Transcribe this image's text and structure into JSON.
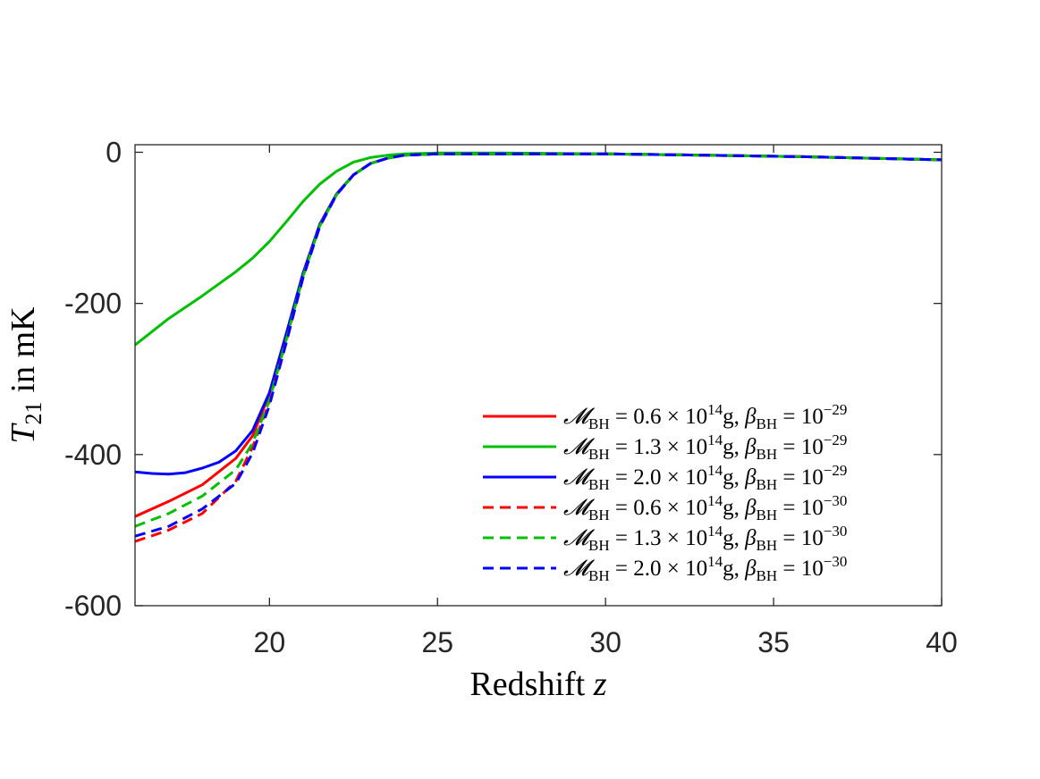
{
  "chart_data": {
    "type": "line",
    "title": "",
    "xlabel": {
      "text": "Redshift",
      "var": "z"
    },
    "ylabel": {
      "var": "T",
      "sub": "21",
      "rest": "in mK"
    },
    "xlim": [
      16,
      40
    ],
    "ylim": [
      -600,
      10
    ],
    "xticks": [
      20,
      25,
      30,
      35,
      40
    ],
    "yticks": [
      0,
      -200,
      -400,
      -600
    ],
    "legend_position": "lower-right",
    "series": [
      {
        "name": "M_BH = 0.6 × 10^14 g, β_BH = 10^-29",
        "label": {
          "mass": "0.6",
          "beta_exp": "−29"
        },
        "color": "#ff0000",
        "dash": "solid",
        "x": [
          16,
          17,
          18,
          19,
          19.5,
          20,
          20.5,
          21,
          21.5,
          22,
          22.5,
          23,
          23.5,
          24,
          25,
          27,
          30,
          33,
          36,
          40
        ],
        "y": [
          -482,
          -462,
          -440,
          -405,
          -375,
          -320,
          -242,
          -160,
          -95,
          -55,
          -30,
          -15,
          -8,
          -4,
          -2,
          -2,
          -2,
          -4,
          -6,
          -10
        ]
      },
      {
        "name": "M_BH = 1.3 × 10^14 g, β_BH = 10^-29",
        "label": {
          "mass": "1.3",
          "beta_exp": "−29"
        },
        "color": "#00c000",
        "dash": "solid",
        "x": [
          16,
          17,
          18,
          19,
          19.5,
          20,
          20.5,
          21,
          21.5,
          22,
          22.5,
          23,
          23.5,
          24,
          25,
          27,
          30,
          33,
          36,
          40
        ],
        "y": [
          -255,
          -220,
          -190,
          -158,
          -140,
          -118,
          -92,
          -65,
          -42,
          -25,
          -13,
          -7,
          -4,
          -2,
          -1,
          -1,
          -2,
          -4,
          -6,
          -10
        ]
      },
      {
        "name": "M_BH = 2.0 × 10^14 g, β_BH = 10^-29",
        "label": {
          "mass": "2.0",
          "beta_exp": "−29"
        },
        "color": "#0000ff",
        "dash": "solid",
        "x": [
          16,
          16.5,
          17,
          17.5,
          18,
          18.5,
          19,
          19.5,
          20,
          20.5,
          21,
          21.5,
          22,
          22.5,
          23,
          23.5,
          24,
          25,
          27,
          30,
          33,
          36,
          40
        ],
        "y": [
          -423,
          -425,
          -426,
          -424,
          -418,
          -410,
          -395,
          -368,
          -318,
          -240,
          -160,
          -95,
          -55,
          -30,
          -15,
          -8,
          -4,
          -2,
          -2,
          -2,
          -4,
          -6,
          -10
        ]
      },
      {
        "name": "M_BH = 0.6 × 10^14 g, β_BH = 10^-30",
        "label": {
          "mass": "0.6",
          "beta_exp": "−30"
        },
        "color": "#ff0000",
        "dash": "dashed",
        "x": [
          16,
          17,
          18,
          19,
          19.5,
          20,
          20.5,
          21,
          21.5,
          22,
          22.5,
          23,
          23.5,
          24,
          25,
          27,
          30,
          33,
          36,
          40
        ],
        "y": [
          -515,
          -500,
          -478,
          -435,
          -390,
          -330,
          -250,
          -165,
          -97,
          -56,
          -30,
          -15,
          -8,
          -4,
          -2,
          -2,
          -2,
          -4,
          -6,
          -10
        ]
      },
      {
        "name": "M_BH = 1.3 × 10^14 g, β_BH = 10^-30",
        "label": {
          "mass": "1.3",
          "beta_exp": "−30"
        },
        "color": "#00c000",
        "dash": "dashed",
        "x": [
          16,
          17,
          18,
          19,
          19.5,
          20,
          20.5,
          21,
          21.5,
          22,
          22.5,
          23,
          23.5,
          24,
          25,
          27,
          30,
          33,
          36,
          40
        ],
        "y": [
          -495,
          -478,
          -455,
          -420,
          -385,
          -328,
          -248,
          -164,
          -97,
          -56,
          -30,
          -15,
          -8,
          -4,
          -2,
          -2,
          -2,
          -4,
          -6,
          -10
        ]
      },
      {
        "name": "M_BH = 2.0 × 10^14 g, β_BH = 10^-30",
        "label": {
          "mass": "2.0",
          "beta_exp": "−30"
        },
        "color": "#0000ff",
        "dash": "dashed",
        "x": [
          16,
          17,
          18,
          19,
          19.5,
          20,
          20.5,
          21,
          21.5,
          22,
          22.5,
          23,
          23.5,
          24,
          25,
          27,
          30,
          33,
          36,
          40
        ],
        "y": [
          -508,
          -495,
          -472,
          -438,
          -398,
          -335,
          -252,
          -166,
          -98,
          -56,
          -30,
          -15,
          -8,
          -4,
          -2,
          -2,
          -2,
          -4,
          -6,
          -10
        ]
      }
    ]
  }
}
